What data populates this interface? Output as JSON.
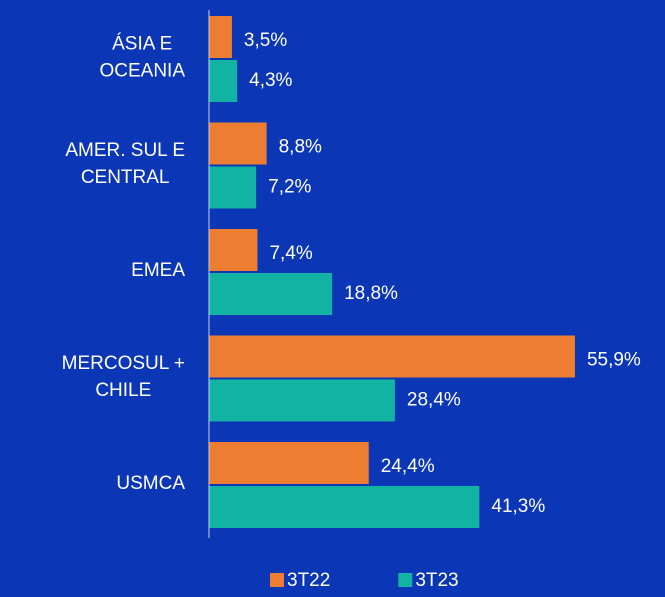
{
  "chart_data": {
    "type": "bar",
    "orientation": "horizontal",
    "categories": [
      [
        "ÁSIA E",
        "OCEANIA"
      ],
      [
        "AMER. SUL E",
        "CENTRAL"
      ],
      [
        "EMEA"
      ],
      [
        "MERCOSUL +",
        "CHILE"
      ],
      [
        "USMCA"
      ]
    ],
    "series": [
      {
        "name": "3T22",
        "color": "#ed7d31",
        "values": [
          3.5,
          8.8,
          7.4,
          55.9,
          24.4
        ],
        "value_labels": [
          "3,5%",
          "8,8%",
          "7,4%",
          "55,9%",
          "24,4%"
        ]
      },
      {
        "name": "3T23",
        "color": "#13b3a4",
        "values": [
          4.3,
          7.2,
          18.8,
          28.4,
          41.3
        ],
        "value_labels": [
          "4,3%",
          "7,2%",
          "18,8%",
          "28,4%",
          "41,3%"
        ]
      }
    ],
    "xlim": [
      0,
      60
    ]
  }
}
